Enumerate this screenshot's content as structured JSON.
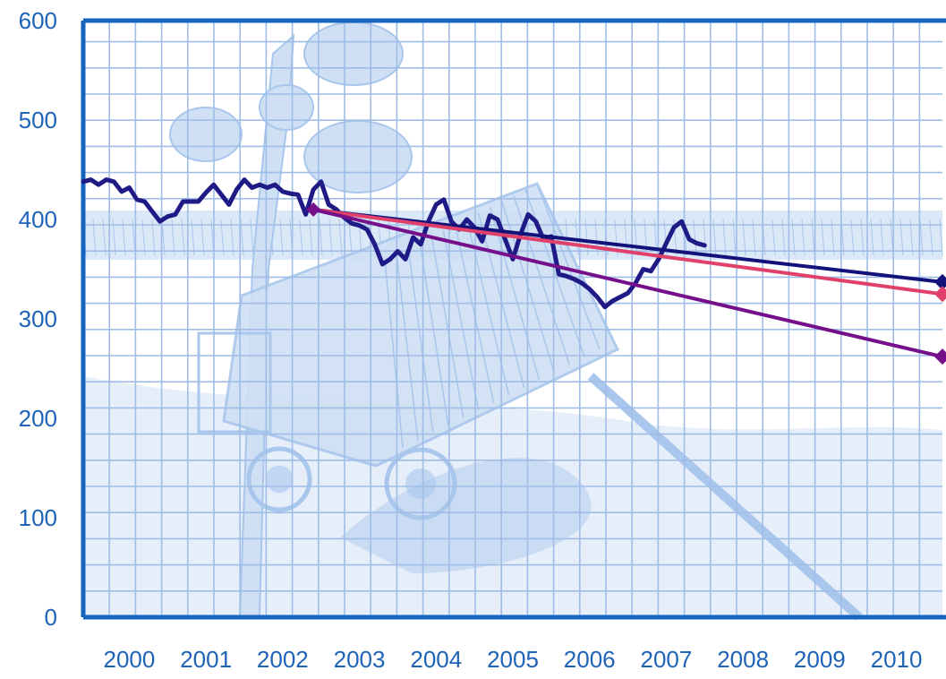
{
  "colors": {
    "frame": "#1565c0",
    "tick_text": "#1e63b8",
    "grid": "#9fbde6",
    "sketch_fill": "#cfe0f4",
    "sketch_stroke": "#a9c6ec",
    "background": "#ffffff"
  },
  "chart_data": {
    "type": "line",
    "title": "",
    "xlabel": "",
    "ylabel": "",
    "xlim": [
      1999.5,
      2010.7
    ],
    "ylim": [
      0,
      600
    ],
    "grid": true,
    "legend": "none",
    "x_ticks": [
      "2000",
      "2001",
      "2002",
      "2003",
      "2004",
      "2005",
      "2006",
      "2007",
      "2008",
      "2009",
      "2010"
    ],
    "y_ticks": [
      "0",
      "100",
      "200",
      "300",
      "400",
      "500",
      "600"
    ],
    "background_illustration": "sketch of a tipping dump trailer in a field",
    "series": [
      {
        "color": "#1f1a86",
        "role": "observed",
        "points": [
          [
            1999.5,
            438
          ],
          [
            1999.6,
            440
          ],
          [
            1999.7,
            435
          ],
          [
            1999.8,
            440
          ],
          [
            1999.9,
            438
          ],
          [
            2000.0,
            428
          ],
          [
            2000.1,
            432
          ],
          [
            2000.2,
            420
          ],
          [
            2000.3,
            418
          ],
          [
            2000.4,
            408
          ],
          [
            2000.5,
            398
          ],
          [
            2000.6,
            403
          ],
          [
            2000.7,
            405
          ],
          [
            2000.8,
            418
          ],
          [
            2000.9,
            418
          ],
          [
            2001.0,
            418
          ],
          [
            2001.1,
            427
          ],
          [
            2001.2,
            435
          ],
          [
            2001.3,
            425
          ],
          [
            2001.4,
            415
          ],
          [
            2001.5,
            430
          ],
          [
            2001.6,
            440
          ],
          [
            2001.7,
            432
          ],
          [
            2001.8,
            435
          ],
          [
            2001.9,
            432
          ],
          [
            2002.0,
            435
          ],
          [
            2002.1,
            428
          ],
          [
            2002.2,
            426
          ],
          [
            2002.3,
            425
          ],
          [
            2002.4,
            405
          ],
          [
            2002.5,
            430
          ],
          [
            2002.6,
            438
          ],
          [
            2002.7,
            415
          ],
          [
            2002.8,
            410
          ],
          [
            2002.9,
            402
          ],
          [
            2003.0,
            396
          ],
          [
            2003.1,
            394
          ],
          [
            2003.2,
            390
          ],
          [
            2003.3,
            375
          ],
          [
            2003.4,
            355
          ],
          [
            2003.5,
            360
          ],
          [
            2003.6,
            368
          ],
          [
            2003.7,
            360
          ],
          [
            2003.8,
            382
          ],
          [
            2003.9,
            375
          ],
          [
            2004.0,
            398
          ],
          [
            2004.1,
            415
          ],
          [
            2004.2,
            420
          ],
          [
            2004.3,
            398
          ],
          [
            2004.4,
            390
          ],
          [
            2004.5,
            400
          ],
          [
            2004.6,
            392
          ],
          [
            2004.7,
            378
          ],
          [
            2004.8,
            404
          ],
          [
            2004.9,
            400
          ],
          [
            2005.0,
            380
          ],
          [
            2005.1,
            360
          ],
          [
            2005.2,
            385
          ],
          [
            2005.3,
            405
          ],
          [
            2005.4,
            398
          ],
          [
            2005.5,
            380
          ],
          [
            2005.6,
            383
          ],
          [
            2005.7,
            345
          ],
          [
            2005.8,
            343
          ],
          [
            2005.9,
            340
          ],
          [
            2006.0,
            336
          ],
          [
            2006.1,
            330
          ],
          [
            2006.2,
            322
          ],
          [
            2006.3,
            312
          ],
          [
            2006.4,
            318
          ],
          [
            2006.5,
            322
          ],
          [
            2006.6,
            326
          ],
          [
            2006.7,
            336
          ],
          [
            2006.8,
            350
          ],
          [
            2006.9,
            348
          ],
          [
            2007.0,
            360
          ],
          [
            2007.1,
            376
          ],
          [
            2007.2,
            392
          ],
          [
            2007.3,
            398
          ],
          [
            2007.4,
            380
          ],
          [
            2007.5,
            376
          ],
          [
            2007.6,
            374
          ]
        ]
      },
      {
        "color": "#12127a",
        "role": "projection",
        "points": [
          [
            2002.5,
            410
          ],
          [
            2010.7,
            337
          ]
        ],
        "end_marker": true
      },
      {
        "color": "#e0406a",
        "role": "projection",
        "points": [
          [
            2002.5,
            410
          ],
          [
            2010.7,
            325
          ]
        ],
        "end_marker": true
      },
      {
        "color": "#75108a",
        "role": "projection",
        "points": [
          [
            2002.5,
            410
          ],
          [
            2010.7,
            262
          ]
        ],
        "start_marker": true,
        "end_marker": true
      }
    ]
  }
}
